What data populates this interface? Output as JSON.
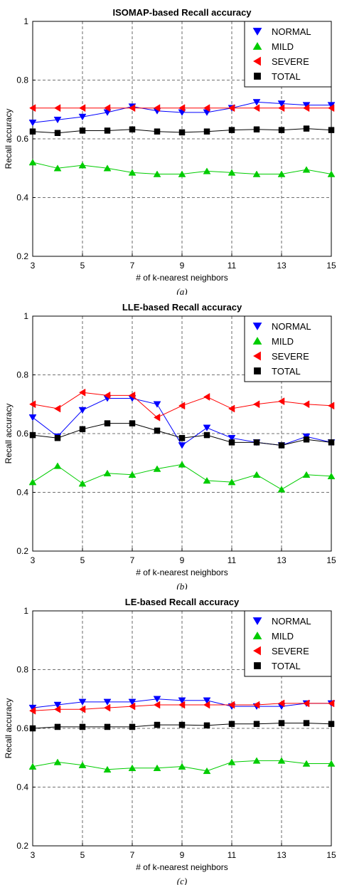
{
  "chart_data": [
    {
      "type": "line",
      "title": "ISOMAP-based Recall accuracy",
      "xlabel": "# of k-nearest neighbors",
      "ylabel": "Recall accuracy",
      "caption": "(a)",
      "xlim": [
        3,
        15
      ],
      "ylim": [
        0.2,
        1
      ],
      "xticks": [
        "3",
        "5",
        "7",
        "9",
        "11",
        "13",
        "15"
      ],
      "yticks": [
        "0.2",
        "0.4",
        "0.6",
        "0.8",
        "1"
      ],
      "grid": true,
      "legend": "top-right",
      "x": [
        3,
        4,
        5,
        6,
        7,
        8,
        9,
        10,
        11,
        12,
        13,
        14,
        15
      ],
      "series": [
        {
          "name": "NORMAL",
          "color": "#0000ff",
          "marker": "triangle-down",
          "values": [
            0.655,
            0.665,
            0.675,
            0.69,
            0.71,
            0.695,
            0.69,
            0.69,
            0.705,
            0.725,
            0.72,
            0.715,
            0.715
          ]
        },
        {
          "name": "MILD",
          "color": "#00cc00",
          "marker": "triangle-up",
          "values": [
            0.52,
            0.5,
            0.51,
            0.5,
            0.485,
            0.48,
            0.48,
            0.49,
            0.485,
            0.48,
            0.48,
            0.495,
            0.48
          ]
        },
        {
          "name": "SEVERE",
          "color": "#ff0000",
          "marker": "triangle-left",
          "values": [
            0.705,
            0.705,
            0.705,
            0.705,
            0.705,
            0.705,
            0.705,
            0.705,
            0.705,
            0.705,
            0.705,
            0.705,
            0.705
          ]
        },
        {
          "name": "TOTAL",
          "color": "#000000",
          "marker": "square",
          "values": [
            0.625,
            0.62,
            0.628,
            0.628,
            0.632,
            0.625,
            0.622,
            0.625,
            0.63,
            0.632,
            0.63,
            0.635,
            0.63
          ]
        }
      ]
    },
    {
      "type": "line",
      "title": "LLE-based Recall accuracy",
      "xlabel": "# of k-nearest neighbors",
      "ylabel": "Recall accuracy",
      "caption": "(b)",
      "xlim": [
        3,
        15
      ],
      "ylim": [
        0.2,
        1
      ],
      "xticks": [
        "3",
        "5",
        "7",
        "9",
        "11",
        "13",
        "15"
      ],
      "yticks": [
        "0.2",
        "0.4",
        "0.6",
        "0.8",
        "1"
      ],
      "grid": true,
      "legend": "top-right",
      "x": [
        3,
        4,
        5,
        6,
        7,
        8,
        9,
        10,
        11,
        12,
        13,
        14,
        15
      ],
      "series": [
        {
          "name": "NORMAL",
          "color": "#0000ff",
          "marker": "triangle-down",
          "values": [
            0.655,
            0.59,
            0.68,
            0.72,
            0.72,
            0.7,
            0.56,
            0.62,
            0.585,
            0.57,
            0.56,
            0.59,
            0.57
          ]
        },
        {
          "name": "MILD",
          "color": "#00cc00",
          "marker": "triangle-up",
          "values": [
            0.435,
            0.49,
            0.43,
            0.465,
            0.46,
            0.48,
            0.495,
            0.44,
            0.435,
            0.46,
            0.41,
            0.46,
            0.455
          ]
        },
        {
          "name": "SEVERE",
          "color": "#ff0000",
          "marker": "triangle-left",
          "values": [
            0.7,
            0.685,
            0.74,
            0.73,
            0.73,
            0.655,
            0.695,
            0.725,
            0.685,
            0.7,
            0.71,
            0.7,
            0.695
          ]
        },
        {
          "name": "TOTAL",
          "color": "#000000",
          "marker": "square",
          "values": [
            0.595,
            0.585,
            0.615,
            0.635,
            0.635,
            0.61,
            0.585,
            0.595,
            0.57,
            0.57,
            0.56,
            0.58,
            0.57
          ]
        }
      ]
    },
    {
      "type": "line",
      "title": "LE-based Recall accuracy",
      "xlabel": "# of k-nearest neighbors",
      "ylabel": "Recall accuracy",
      "caption": "(c)",
      "xlim": [
        3,
        15
      ],
      "ylim": [
        0.2,
        1
      ],
      "xticks": [
        "3",
        "5",
        "7",
        "9",
        "11",
        "13",
        "15"
      ],
      "yticks": [
        "0.2",
        "0.4",
        "0.6",
        "0.8",
        "1"
      ],
      "grid": true,
      "legend": "top-right",
      "x": [
        3,
        4,
        5,
        6,
        7,
        8,
        9,
        10,
        11,
        12,
        13,
        14,
        15
      ],
      "series": [
        {
          "name": "NORMAL",
          "color": "#0000ff",
          "marker": "triangle-down",
          "values": [
            0.67,
            0.68,
            0.69,
            0.69,
            0.69,
            0.7,
            0.695,
            0.695,
            0.675,
            0.675,
            0.675,
            0.685,
            0.685
          ]
        },
        {
          "name": "MILD",
          "color": "#00cc00",
          "marker": "triangle-up",
          "values": [
            0.47,
            0.485,
            0.475,
            0.46,
            0.465,
            0.465,
            0.47,
            0.455,
            0.485,
            0.49,
            0.49,
            0.48,
            0.48
          ]
        },
        {
          "name": "SEVERE",
          "color": "#ff0000",
          "marker": "triangle-left",
          "values": [
            0.66,
            0.665,
            0.665,
            0.67,
            0.675,
            0.68,
            0.68,
            0.68,
            0.68,
            0.68,
            0.685,
            0.685,
            0.685
          ]
        },
        {
          "name": "TOTAL",
          "color": "#000000",
          "marker": "square",
          "values": [
            0.6,
            0.605,
            0.605,
            0.605,
            0.605,
            0.612,
            0.612,
            0.61,
            0.615,
            0.615,
            0.618,
            0.618,
            0.615
          ]
        }
      ]
    }
  ]
}
